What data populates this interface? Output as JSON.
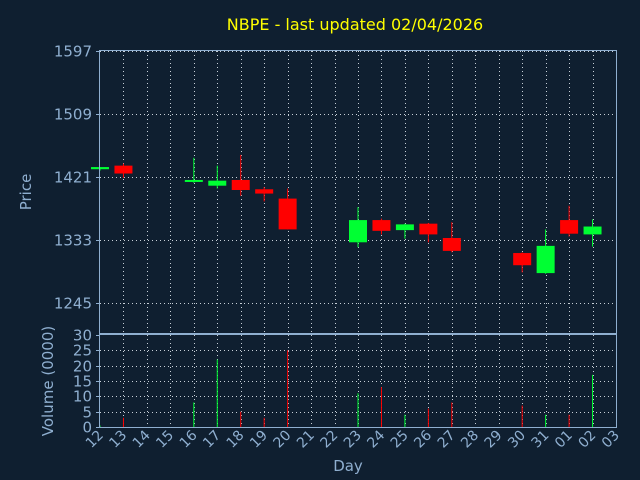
{
  "chart_data": {
    "type": "candlestick",
    "title": "NBPE - last updated 02/04/2026",
    "xlabel": "Day",
    "price_label": "Price",
    "volume_label": "Volume (0000)",
    "price_ticks": [
      1245,
      1333,
      1421,
      1509,
      1597
    ],
    "price_ylim": [
      1202,
      1597
    ],
    "volume_ticks": [
      0,
      5,
      10,
      15,
      20,
      25,
      30
    ],
    "volume_ylim": [
      0,
      30
    ],
    "x_ticks": [
      "12",
      "13",
      "14",
      "15",
      "16",
      "17",
      "18",
      "19",
      "20",
      "21",
      "22",
      "23",
      "24",
      "25",
      "26",
      "27",
      "28",
      "29",
      "30",
      "31",
      "01",
      "02",
      "03"
    ],
    "grid": true,
    "colors": {
      "background": "#0f1f30",
      "up": "#00ff33",
      "down": "#ff0000",
      "title": "#ffff00",
      "axis_text": "#8fafd0",
      "grid": "#c8d0d8"
    },
    "candles": [
      {
        "day": "12",
        "open": 1432,
        "high": 1435,
        "low": 1430,
        "close": 1435,
        "volume": 0.5
      },
      {
        "day": "13",
        "open": 1437,
        "high": 1440,
        "low": 1420,
        "close": 1426,
        "volume": 3
      },
      {
        "day": "16",
        "open": 1415,
        "high": 1448,
        "low": 1413,
        "close": 1417,
        "volume": 8
      },
      {
        "day": "17",
        "open": 1409,
        "high": 1437,
        "low": 1405,
        "close": 1416,
        "volume": 22
      },
      {
        "day": "18",
        "open": 1417,
        "high": 1452,
        "low": 1395,
        "close": 1403,
        "volume": 5
      },
      {
        "day": "19",
        "open": 1404,
        "high": 1407,
        "low": 1387,
        "close": 1398,
        "volume": 3
      },
      {
        "day": "20",
        "open": 1391,
        "high": 1405,
        "low": 1348,
        "close": 1348,
        "volume": 25
      },
      {
        "day": "23",
        "open": 1330,
        "high": 1379,
        "low": 1323,
        "close": 1361,
        "volume": 11
      },
      {
        "day": "24",
        "open": 1361,
        "high": 1363,
        "low": 1341,
        "close": 1346,
        "volume": 13
      },
      {
        "day": "25",
        "open": 1347,
        "high": 1356,
        "low": 1335,
        "close": 1355,
        "volume": 4
      },
      {
        "day": "26",
        "open": 1356,
        "high": 1357,
        "low": 1330,
        "close": 1341,
        "volume": 6
      },
      {
        "day": "27",
        "open": 1336,
        "high": 1358,
        "low": 1316,
        "close": 1318,
        "volume": 8
      },
      {
        "day": "30",
        "open": 1315,
        "high": 1316,
        "low": 1288,
        "close": 1298,
        "volume": 7
      },
      {
        "day": "31",
        "open": 1287,
        "high": 1348,
        "low": 1286,
        "close": 1325,
        "volume": 4
      },
      {
        "day": "01",
        "open": 1361,
        "high": 1381,
        "low": 1338,
        "close": 1342,
        "volume": 4
      },
      {
        "day": "02",
        "open": 1341,
        "high": 1362,
        "low": 1324,
        "close": 1352,
        "volume": 17
      }
    ]
  }
}
